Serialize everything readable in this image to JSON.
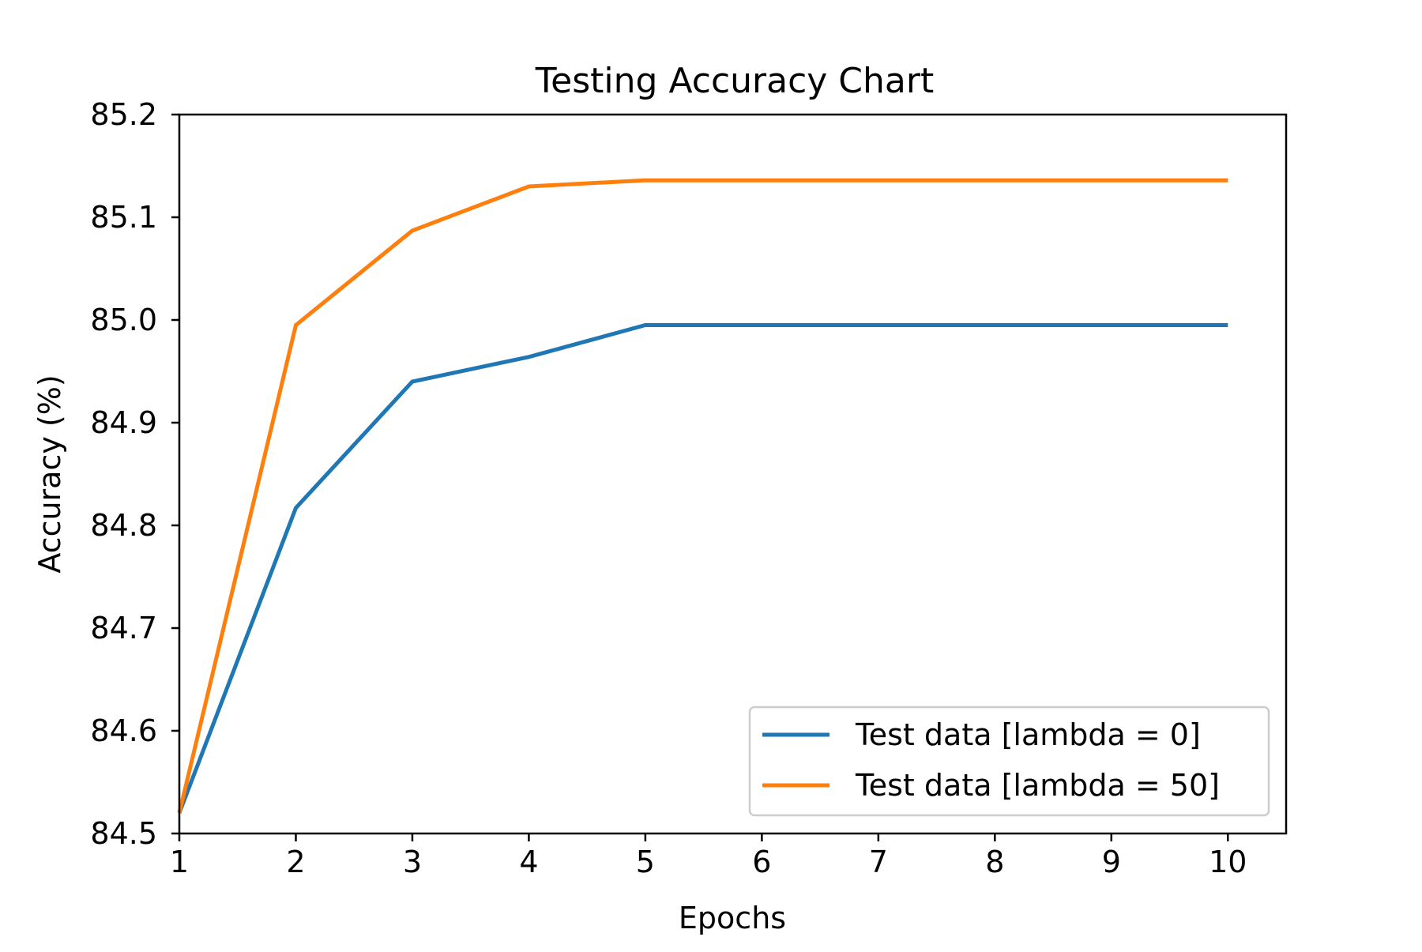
{
  "chart_data": {
    "type": "line",
    "title": "Testing Accuracy Chart",
    "xlabel": "Epochs",
    "ylabel": "Accuracy (%)",
    "x": [
      1,
      2,
      3,
      4,
      5,
      6,
      7,
      8,
      9,
      10
    ],
    "xlim": [
      1,
      10.5
    ],
    "ylim": [
      84.5,
      85.2
    ],
    "xticks": [
      1,
      2,
      3,
      4,
      5,
      6,
      7,
      8,
      9,
      10
    ],
    "yticks": [
      "84.5",
      "84.6",
      "84.7",
      "84.8",
      "84.9",
      "85.0",
      "85.1",
      "85.2"
    ],
    "grid": false,
    "legend_position": "lower-right",
    "series": [
      {
        "name": "Test data [lambda = 0]",
        "color": "#1f77b4",
        "values": [
          84.52,
          84.817,
          84.94,
          84.964,
          84.995,
          84.995,
          84.995,
          84.995,
          84.995,
          84.995
        ]
      },
      {
        "name": "Test data [lambda = 50]",
        "color": "#ff7f0e",
        "values": [
          84.52,
          84.995,
          85.087,
          85.13,
          85.136,
          85.136,
          85.136,
          85.136,
          85.136,
          85.136
        ]
      }
    ]
  }
}
